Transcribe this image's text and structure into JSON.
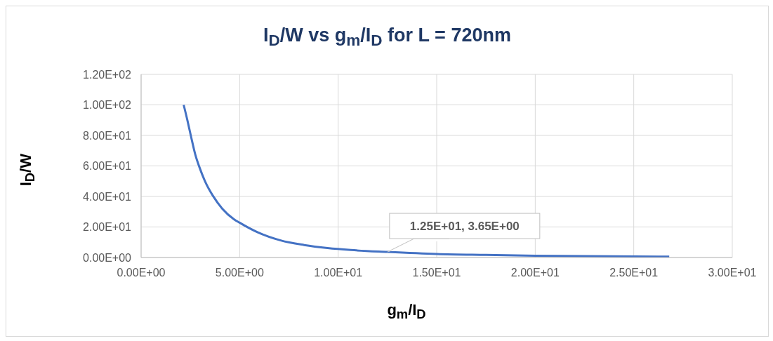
{
  "chart_data": {
    "type": "line",
    "title": "I$_{D}$/W vs g$_{m}$/I$_{D}$ for L = 720nm",
    "xlabel": "g$_{m}$/I$_{D}$",
    "ylabel": "I$_{D}$/W",
    "x": [
      2.16,
      2.34,
      2.52,
      2.75,
      2.99,
      3.28,
      3.64,
      4.12,
      4.71,
      5.0,
      5.9,
      7.08,
      8.27,
      9.46,
      10.64,
      12.5,
      15,
      17.5,
      20,
      22.5,
      25,
      26.8
    ],
    "series": [
      {
        "color": "#4472c4",
        "values": [
          100,
          90.4,
          80,
          67.4,
          58.1,
          48.9,
          40.5,
          32,
          25.1,
          22.8,
          16.6,
          11.2,
          8.2,
          6.2,
          4.9,
          3.65,
          2.3,
          1.7,
          1.2,
          0.9,
          0.7,
          0.6
        ]
      }
    ],
    "xlim": [
      0,
      30
    ],
    "ylim": [
      0,
      120
    ],
    "xticks": [
      {
        "value": 0,
        "label": "0.00E+00"
      },
      {
        "value": 5,
        "label": "5.00E+00"
      },
      {
        "value": 10,
        "label": "1.00E+01"
      },
      {
        "value": 15,
        "label": "1.50E+01"
      },
      {
        "value": 20,
        "label": "2.00E+01"
      },
      {
        "value": 25,
        "label": "2.50E+01"
      },
      {
        "value": 30,
        "label": "3.00E+01"
      }
    ],
    "yticks": [
      {
        "value": 0,
        "label": "0.00E+00"
      },
      {
        "value": 20,
        "label": "2.00E+01"
      },
      {
        "value": 40,
        "label": "4.00E+01"
      },
      {
        "value": 60,
        "label": "6.00E+01"
      },
      {
        "value": 80,
        "label": "8.00E+01"
      },
      {
        "value": 100,
        "label": "1.00E+02"
      },
      {
        "value": 120,
        "label": "1.20E+02"
      }
    ],
    "grid": true,
    "annotations": [
      {
        "text": "1.25E+01, 3.65E+00",
        "x": 12.5,
        "y": 3.65
      }
    ]
  }
}
